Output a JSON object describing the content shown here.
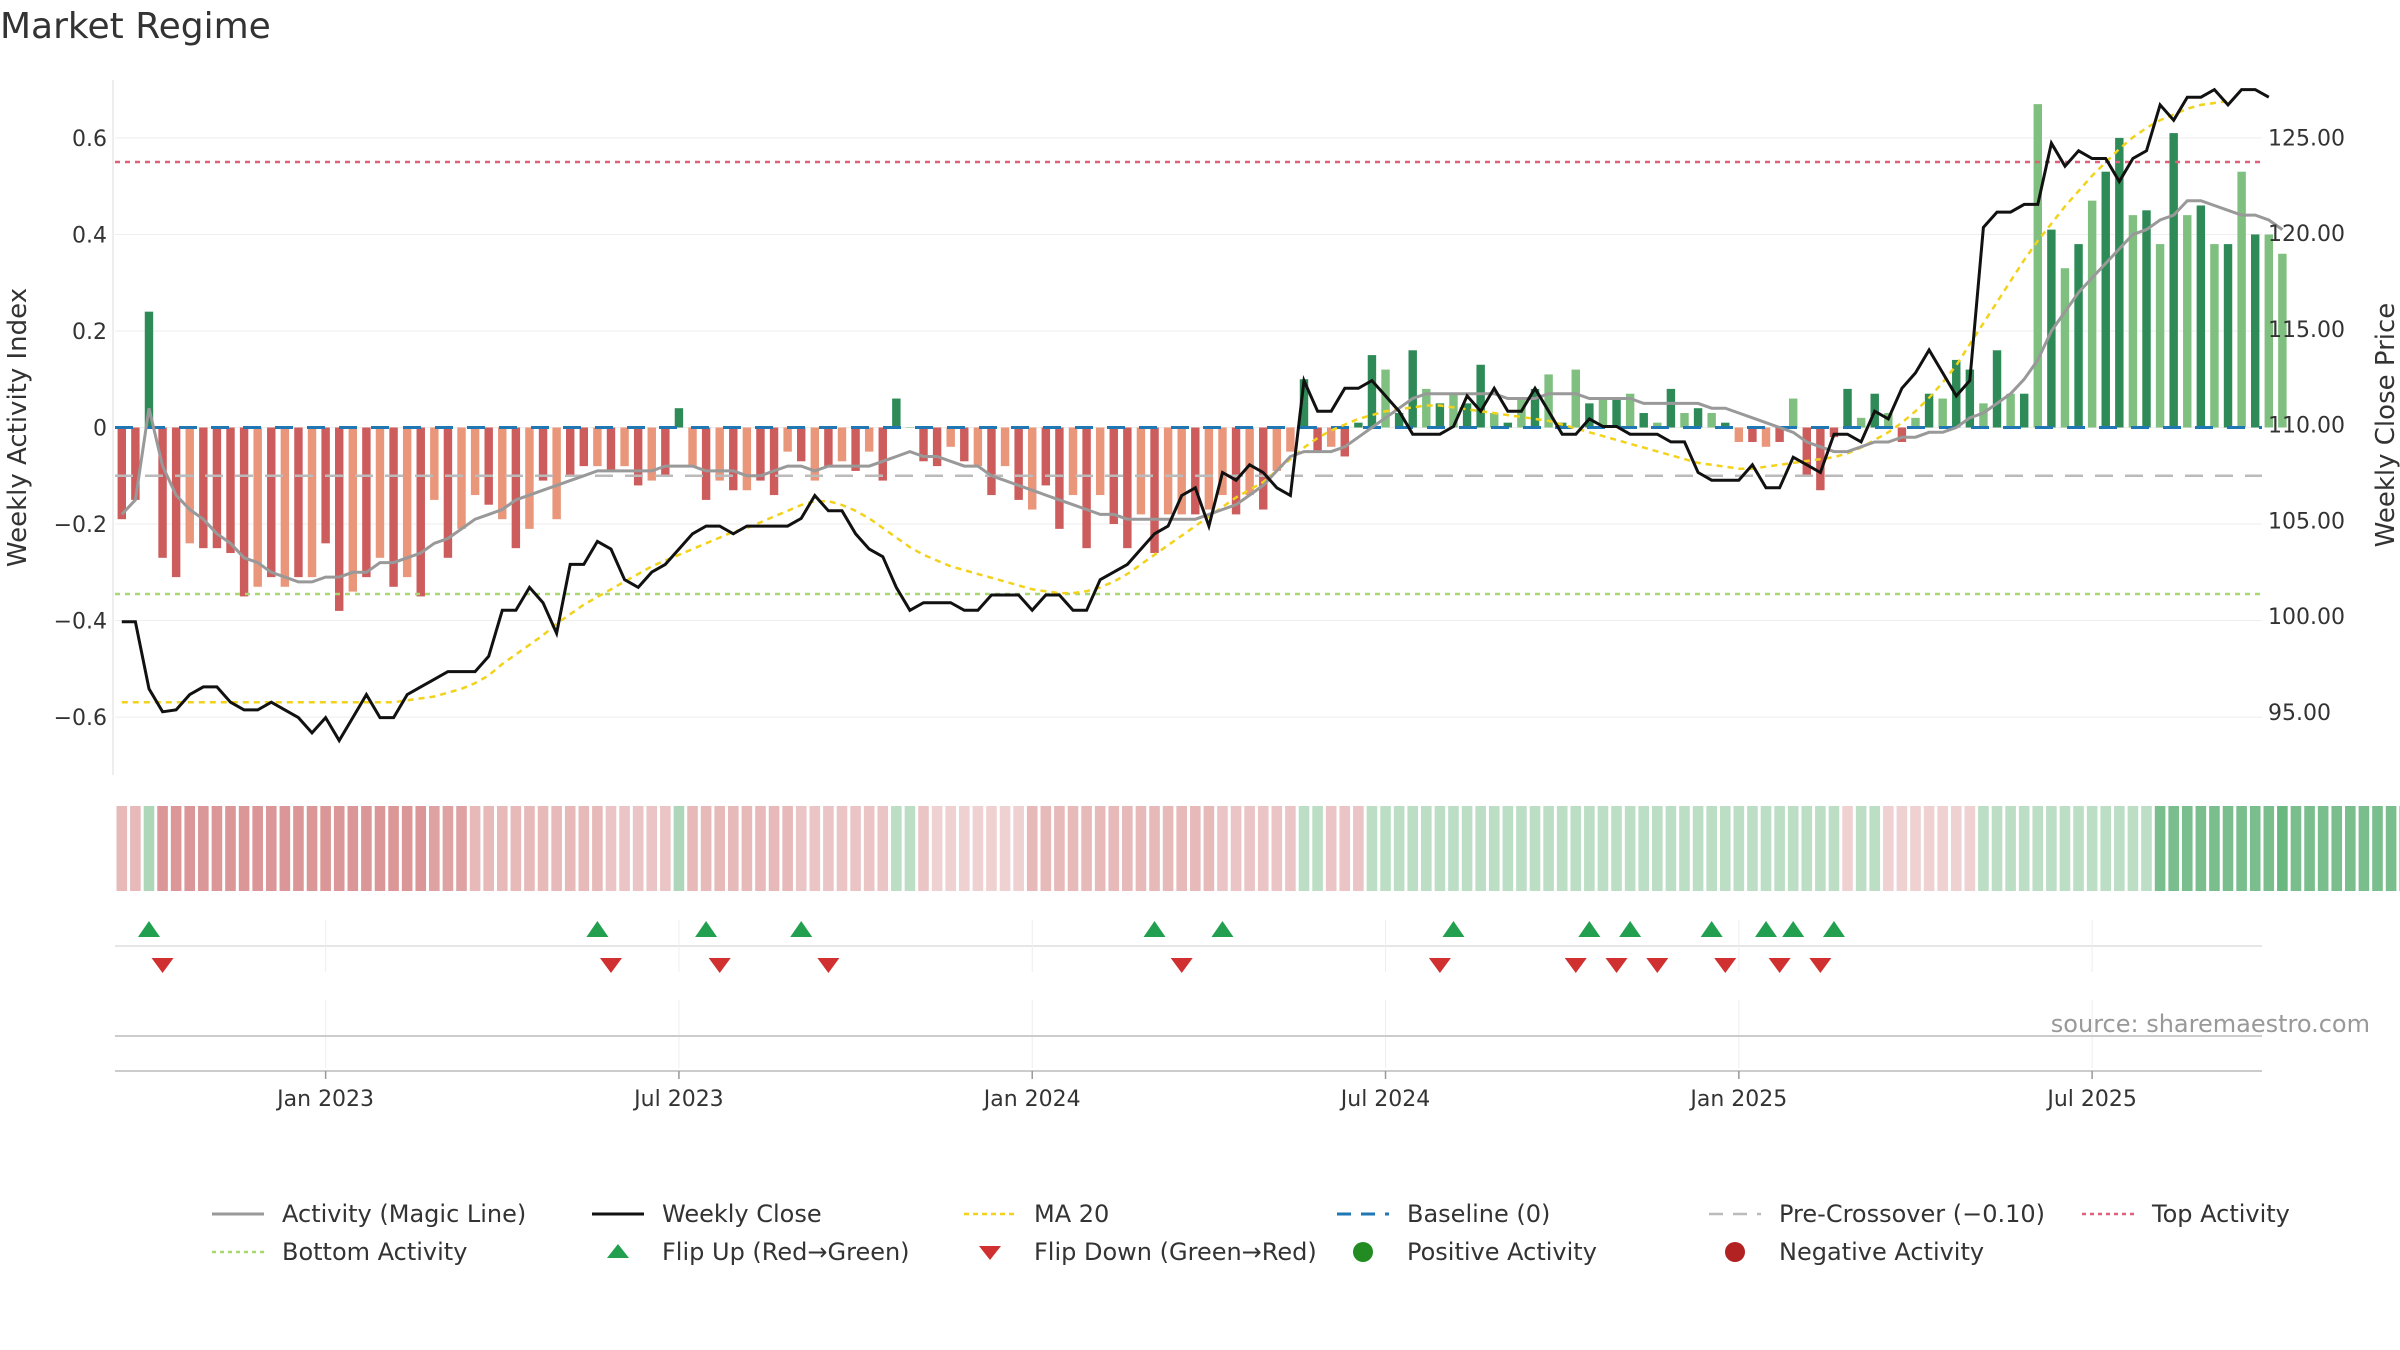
{
  "title": "Market Regime",
  "source": "source: sharemaestro.com",
  "colors": {
    "pos_strong": "#2e8b57",
    "pos_weak": "#7fbf7f",
    "neg_strong": "#cd5c5c",
    "neg_weak": "#e9967a",
    "close": "#111111",
    "magic": "#999999",
    "ma20": "#f2d21b",
    "baseline": "#1f77b4",
    "precross": "#bbbbbb",
    "top": "#e0607a",
    "bottom": "#a8d870",
    "flip_up": "#22a050",
    "flip_down": "#d03030",
    "pos_marker": "#228b22",
    "neg_marker": "#b22222"
  },
  "chart_data": {
    "type": "bar",
    "title": "Market Regime",
    "ylabel": "Weekly Activity Index",
    "y2label": "Weekly Close Price",
    "ylim": [
      -0.72,
      0.72
    ],
    "y2lim": [
      91.7,
      128.0
    ],
    "yticks": [
      0.6,
      0.4,
      0.2,
      0,
      -0.2,
      -0.4,
      -0.6
    ],
    "ytick_labels": [
      "0.6",
      "0.4",
      "0.2",
      "0",
      "−0.2",
      "−0.4",
      "−0.6"
    ],
    "y2ticks": [
      125,
      120,
      115,
      110,
      105,
      100,
      95
    ],
    "y2tick_labels": [
      "125.00",
      "120.00",
      "115.00",
      "110.00",
      "105.00",
      "100.00",
      "95.00"
    ],
    "xticks": [
      {
        "week": 15,
        "label": "Jan 2023"
      },
      {
        "week": 41,
        "label": "Jul 2023"
      },
      {
        "week": 67,
        "label": "Jan 2024"
      },
      {
        "week": 93,
        "label": "Jul 2024"
      },
      {
        "week": 119,
        "label": "Jan 2025"
      },
      {
        "week": 145,
        "label": "Jul 2025"
      }
    ],
    "num_weeks": 158,
    "reference_lines": {
      "baseline": 0,
      "pre_crossover": -0.1,
      "top_activity": 0.55,
      "bottom_activity": -0.345
    },
    "activity": [
      -0.19,
      -0.15,
      0.24,
      -0.27,
      -0.31,
      -0.24,
      -0.25,
      -0.25,
      -0.26,
      -0.35,
      -0.33,
      -0.31,
      -0.33,
      -0.31,
      -0.31,
      -0.24,
      -0.38,
      -0.34,
      -0.31,
      -0.27,
      -0.33,
      -0.31,
      -0.35,
      -0.15,
      -0.27,
      -0.21,
      -0.14,
      -0.16,
      -0.19,
      -0.25,
      -0.21,
      -0.11,
      -0.19,
      -0.1,
      -0.08,
      -0.08,
      -0.09,
      -0.08,
      -0.12,
      -0.11,
      -0.1,
      0.04,
      -0.08,
      -0.15,
      -0.11,
      -0.13,
      -0.13,
      -0.11,
      -0.14,
      -0.05,
      -0.07,
      -0.11,
      -0.08,
      -0.07,
      -0.09,
      -0.05,
      -0.11,
      0.06,
      0.0,
      -0.07,
      -0.08,
      -0.04,
      -0.07,
      -0.08,
      -0.14,
      -0.08,
      -0.15,
      -0.17,
      -0.12,
      -0.21,
      -0.14,
      -0.25,
      -0.14,
      -0.2,
      -0.25,
      -0.18,
      -0.26,
      -0.18,
      -0.18,
      -0.18,
      -0.17,
      -0.14,
      -0.18,
      -0.14,
      -0.17,
      -0.09,
      -0.05,
      0.1,
      -0.05,
      -0.04,
      -0.06,
      0.01,
      0.15,
      0.12,
      0.03,
      0.16,
      0.08,
      0.05,
      0.07,
      0.05,
      0.13,
      0.03,
      0.01,
      0.06,
      0.08,
      0.11,
      0.01,
      0.12,
      0.05,
      0.06,
      0.06,
      0.07,
      0.03,
      0.01,
      0.08,
      0.03,
      0.04,
      0.03,
      0.01,
      -0.03,
      -0.03,
      -0.04,
      -0.03,
      0.06,
      -0.1,
      -0.13,
      -0.02,
      0.08,
      0.02,
      0.07,
      0.03,
      -0.03,
      0.02,
      0.07,
      0.06,
      0.14,
      0.12,
      0.05,
      0.16,
      0.07,
      0.07,
      0.67,
      0.41,
      0.33,
      0.38,
      0.47,
      0.53,
      0.6,
      0.44,
      0.45,
      0.38,
      0.61,
      0.44,
      0.46,
      0.38,
      0.38,
      0.53,
      0.4,
      0.4,
      0.36
    ],
    "strong": [
      1,
      1,
      1,
      1,
      1,
      0,
      1,
      1,
      1,
      1,
      0,
      1,
      0,
      1,
      0,
      1,
      1,
      0,
      1,
      0,
      1,
      0,
      1,
      0,
      1,
      0,
      0,
      1,
      0,
      1,
      0,
      1,
      0,
      1,
      1,
      0,
      1,
      0,
      1,
      0,
      1,
      1,
      0,
      1,
      0,
      1,
      0,
      1,
      1,
      0,
      1,
      0,
      1,
      0,
      1,
      0,
      1,
      1,
      0,
      1,
      1,
      0,
      1,
      0,
      1,
      0,
      1,
      0,
      1,
      1,
      0,
      1,
      0,
      1,
      1,
      0,
      1,
      0,
      0,
      1,
      0,
      0,
      1,
      0,
      1,
      0,
      0,
      1,
      1,
      0,
      1,
      1,
      1,
      0,
      1,
      1,
      0,
      1,
      0,
      1,
      1,
      0,
      1,
      0,
      1,
      0,
      1,
      0,
      1,
      0,
      1,
      0,
      1,
      0,
      1,
      0,
      1,
      0,
      1,
      0,
      1,
      0,
      1,
      0,
      1,
      1,
      1,
      1,
      0,
      1,
      0,
      1,
      0,
      1,
      0,
      1,
      1,
      0,
      1,
      0,
      1,
      0,
      1,
      0,
      1,
      0,
      1,
      1,
      0,
      1,
      0,
      1,
      0,
      1,
      0,
      1,
      0,
      1
    ],
    "magic": [
      -0.18,
      -0.15,
      0.04,
      -0.08,
      -0.14,
      -0.17,
      -0.19,
      -0.22,
      -0.24,
      -0.27,
      -0.28,
      -0.3,
      -0.31,
      -0.32,
      -0.32,
      -0.31,
      -0.31,
      -0.3,
      -0.3,
      -0.28,
      -0.28,
      -0.27,
      -0.26,
      -0.24,
      -0.23,
      -0.21,
      -0.19,
      -0.18,
      -0.17,
      -0.15,
      -0.14,
      -0.13,
      -0.12,
      -0.11,
      -0.1,
      -0.09,
      -0.09,
      -0.09,
      -0.09,
      -0.09,
      -0.08,
      -0.08,
      -0.08,
      -0.09,
      -0.09,
      -0.09,
      -0.1,
      -0.1,
      -0.09,
      -0.08,
      -0.08,
      -0.09,
      -0.08,
      -0.08,
      -0.08,
      -0.08,
      -0.07,
      -0.06,
      -0.05,
      -0.06,
      -0.06,
      -0.07,
      -0.08,
      -0.08,
      -0.1,
      -0.11,
      -0.12,
      -0.13,
      -0.14,
      -0.15,
      -0.16,
      -0.17,
      -0.18,
      -0.18,
      -0.19,
      -0.19,
      -0.19,
      -0.19,
      -0.19,
      -0.19,
      -0.18,
      -0.17,
      -0.16,
      -0.14,
      -0.12,
      -0.09,
      -0.06,
      -0.05,
      -0.05,
      -0.05,
      -0.04,
      -0.02,
      0.0,
      0.02,
      0.04,
      0.06,
      0.07,
      0.07,
      0.07,
      0.07,
      0.07,
      0.07,
      0.06,
      0.06,
      0.06,
      0.07,
      0.07,
      0.07,
      0.06,
      0.06,
      0.06,
      0.06,
      0.05,
      0.05,
      0.05,
      0.05,
      0.05,
      0.04,
      0.04,
      0.03,
      0.02,
      0.01,
      0.0,
      -0.01,
      -0.03,
      -0.04,
      -0.05,
      -0.05,
      -0.04,
      -0.03,
      -0.03,
      -0.02,
      -0.02,
      -0.01,
      -0.01,
      0.0,
      0.02,
      0.03,
      0.05,
      0.07,
      0.1,
      0.14,
      0.2,
      0.24,
      0.28,
      0.31,
      0.34,
      0.37,
      0.4,
      0.41,
      0.43,
      0.44,
      0.47,
      0.47,
      0.46,
      0.45,
      0.44,
      0.44,
      0.43,
      0.41
    ],
    "close": [
      99.7,
      99.7,
      96.2,
      95.0,
      95.1,
      95.9,
      96.3,
      96.3,
      95.5,
      95.1,
      95.1,
      95.5,
      95.1,
      94.7,
      93.9,
      94.7,
      93.5,
      94.7,
      95.9,
      94.7,
      94.7,
      95.9,
      96.3,
      96.7,
      97.1,
      97.1,
      97.1,
      97.9,
      100.3,
      100.3,
      101.5,
      100.7,
      99.1,
      102.7,
      102.7,
      103.9,
      103.5,
      101.9,
      101.5,
      102.3,
      102.7,
      103.5,
      104.3,
      104.7,
      104.7,
      104.3,
      104.7,
      104.7,
      104.7,
      104.7,
      105.1,
      106.3,
      105.5,
      105.5,
      104.3,
      103.5,
      103.1,
      101.5,
      100.3,
      100.7,
      100.7,
      100.7,
      100.3,
      100.3,
      101.1,
      101.1,
      101.1,
      100.3,
      101.1,
      101.1,
      100.3,
      100.3,
      101.9,
      102.3,
      102.7,
      103.5,
      104.3,
      104.7,
      106.3,
      106.7,
      104.7,
      107.5,
      107.1,
      107.9,
      107.5,
      106.7,
      106.3,
      112.3,
      110.7,
      110.7,
      111.9,
      111.9,
      112.3,
      111.5,
      110.7,
      109.5,
      109.5,
      109.5,
      109.9,
      111.5,
      110.7,
      111.9,
      110.7,
      110.7,
      111.9,
      110.7,
      109.5,
      109.5,
      110.3,
      109.9,
      109.9,
      109.5,
      109.5,
      109.5,
      109.1,
      109.1,
      107.5,
      107.1,
      107.1,
      107.1,
      107.9,
      106.7,
      106.7,
      108.3,
      107.9,
      107.5,
      109.5,
      109.5,
      109.1,
      110.7,
      110.3,
      111.9,
      112.7,
      113.9,
      112.7,
      111.5,
      112.3,
      120.3,
      121.1,
      121.1,
      121.5,
      121.5,
      124.7,
      123.5,
      124.3,
      123.9,
      123.9,
      122.7,
      123.9,
      124.3,
      126.7,
      125.9,
      127.1,
      127.1,
      127.5,
      126.7,
      127.5,
      127.5,
      127.1
    ],
    "ma20": [
      95.5,
      95.5,
      95.5,
      95.5,
      95.5,
      95.5,
      95.5,
      95.5,
      95.5,
      95.5,
      95.5,
      95.5,
      95.5,
      95.5,
      95.5,
      95.5,
      95.5,
      95.5,
      95.5,
      95.5,
      95.5,
      95.6,
      95.7,
      95.8,
      96.0,
      96.2,
      96.5,
      96.9,
      97.5,
      98.0,
      98.5,
      99.0,
      99.6,
      100.1,
      100.6,
      101.0,
      101.4,
      101.8,
      102.2,
      102.6,
      102.9,
      103.2,
      103.5,
      103.8,
      104.1,
      104.4,
      104.6,
      104.9,
      105.2,
      105.5,
      105.8,
      106.0,
      106.0,
      105.8,
      105.5,
      105.1,
      104.6,
      104.1,
      103.6,
      103.2,
      102.9,
      102.6,
      102.4,
      102.2,
      102.0,
      101.8,
      101.6,
      101.4,
      101.3,
      101.2,
      101.2,
      101.3,
      101.5,
      101.8,
      102.2,
      102.7,
      103.2,
      103.7,
      104.2,
      104.7,
      105.2,
      105.7,
      106.2,
      106.6,
      107.0,
      107.6,
      108.2,
      108.8,
      109.3,
      109.7,
      110.0,
      110.3,
      110.5,
      110.7,
      110.8,
      110.9,
      111.0,
      111.0,
      110.9,
      110.8,
      110.7,
      110.6,
      110.5,
      110.4,
      110.3,
      110.2,
      110.0,
      109.8,
      109.6,
      109.4,
      109.2,
      109.0,
      108.8,
      108.6,
      108.4,
      108.2,
      108.0,
      107.9,
      107.8,
      107.7,
      107.7,
      107.8,
      107.9,
      108.0,
      108.1,
      108.2,
      108.3,
      108.5,
      108.8,
      109.2,
      109.6,
      110.1,
      110.7,
      111.4,
      112.2,
      113.1,
      114.2,
      115.3,
      116.4,
      117.5,
      118.6,
      119.6,
      120.5,
      121.4,
      122.2,
      123.0,
      123.7,
      124.4,
      125.0,
      125.5,
      125.9,
      126.2,
      126.5,
      126.7,
      126.8,
      126.9
    ],
    "regime": [
      -0.3,
      -0.3,
      0.3,
      -0.45,
      -0.45,
      -0.45,
      -0.45,
      -0.45,
      -0.45,
      -0.45,
      -0.45,
      -0.45,
      -0.45,
      -0.45,
      -0.45,
      -0.45,
      -0.45,
      -0.45,
      -0.45,
      -0.45,
      -0.45,
      -0.45,
      -0.45,
      -0.4,
      -0.4,
      -0.4,
      -0.3,
      -0.3,
      -0.3,
      -0.3,
      -0.3,
      -0.3,
      -0.3,
      -0.3,
      -0.3,
      -0.3,
      -0.25,
      -0.25,
      -0.25,
      -0.25,
      -0.25,
      0.3,
      -0.3,
      -0.3,
      -0.3,
      -0.3,
      -0.3,
      -0.3,
      -0.3,
      -0.3,
      -0.25,
      -0.25,
      -0.25,
      -0.25,
      -0.25,
      -0.25,
      -0.25,
      0.25,
      0.25,
      -0.25,
      -0.2,
      -0.2,
      -0.2,
      -0.2,
      -0.2,
      -0.2,
      -0.2,
      -0.3,
      -0.3,
      -0.3,
      -0.3,
      -0.3,
      -0.3,
      -0.3,
      -0.3,
      -0.3,
      -0.3,
      -0.3,
      -0.3,
      -0.3,
      -0.3,
      -0.25,
      -0.25,
      -0.25,
      -0.25,
      -0.25,
      -0.25,
      0.25,
      0.25,
      -0.25,
      -0.25,
      -0.25,
      0.25,
      0.25,
      0.25,
      0.25,
      0.25,
      0.25,
      0.25,
      0.25,
      0.25,
      0.25,
      0.25,
      0.25,
      0.25,
      0.25,
      0.25,
      0.25,
      0.25,
      0.25,
      0.25,
      0.25,
      0.25,
      0.25,
      0.25,
      0.25,
      0.25,
      0.25,
      0.25,
      0.25,
      0.25,
      0.25,
      0.25,
      0.25,
      0.25,
      0.25,
      0.25,
      -0.2,
      0.25,
      0.25,
      -0.2,
      -0.2,
      -0.2,
      -0.2,
      -0.2,
      -0.2,
      -0.2,
      0.25,
      0.25,
      0.25,
      0.25,
      0.25,
      0.25,
      0.25,
      0.25,
      0.25,
      0.25,
      0.25,
      0.25,
      0.25,
      0.5,
      0.5,
      0.5,
      0.5,
      0.5,
      0.5,
      0.5,
      0.5,
      0.5,
      0.55,
      0.5,
      0.5,
      0.5,
      0.5,
      0.5,
      0.5,
      0.5,
      0.5,
      0.45
    ],
    "flip_up_weeks": [
      2,
      35,
      43,
      50,
      76,
      81,
      98,
      108,
      111,
      117,
      121,
      123,
      126
    ],
    "flip_down_weeks": [
      3,
      36,
      44,
      52,
      78,
      97,
      107,
      110,
      113,
      118,
      122,
      125
    ],
    "legend": [
      {
        "key": "magic",
        "label": "Activity (Magic Line)"
      },
      {
        "key": "close",
        "label": "Weekly Close"
      },
      {
        "key": "ma20",
        "label": "MA 20"
      },
      {
        "key": "baseline",
        "label": "Baseline (0)"
      },
      {
        "key": "precross",
        "label": "Pre-Crossover (−0.10)"
      },
      {
        "key": "top",
        "label": "Top Activity"
      },
      {
        "key": "bottom",
        "label": "Bottom Activity"
      },
      {
        "key": "flip_up",
        "label": "Flip Up (Red→Green)"
      },
      {
        "key": "flip_down",
        "label": "Flip Down (Green→Red)"
      },
      {
        "key": "pos_marker",
        "label": "Positive Activity"
      },
      {
        "key": "neg_marker",
        "label": "Negative Activity"
      }
    ]
  }
}
